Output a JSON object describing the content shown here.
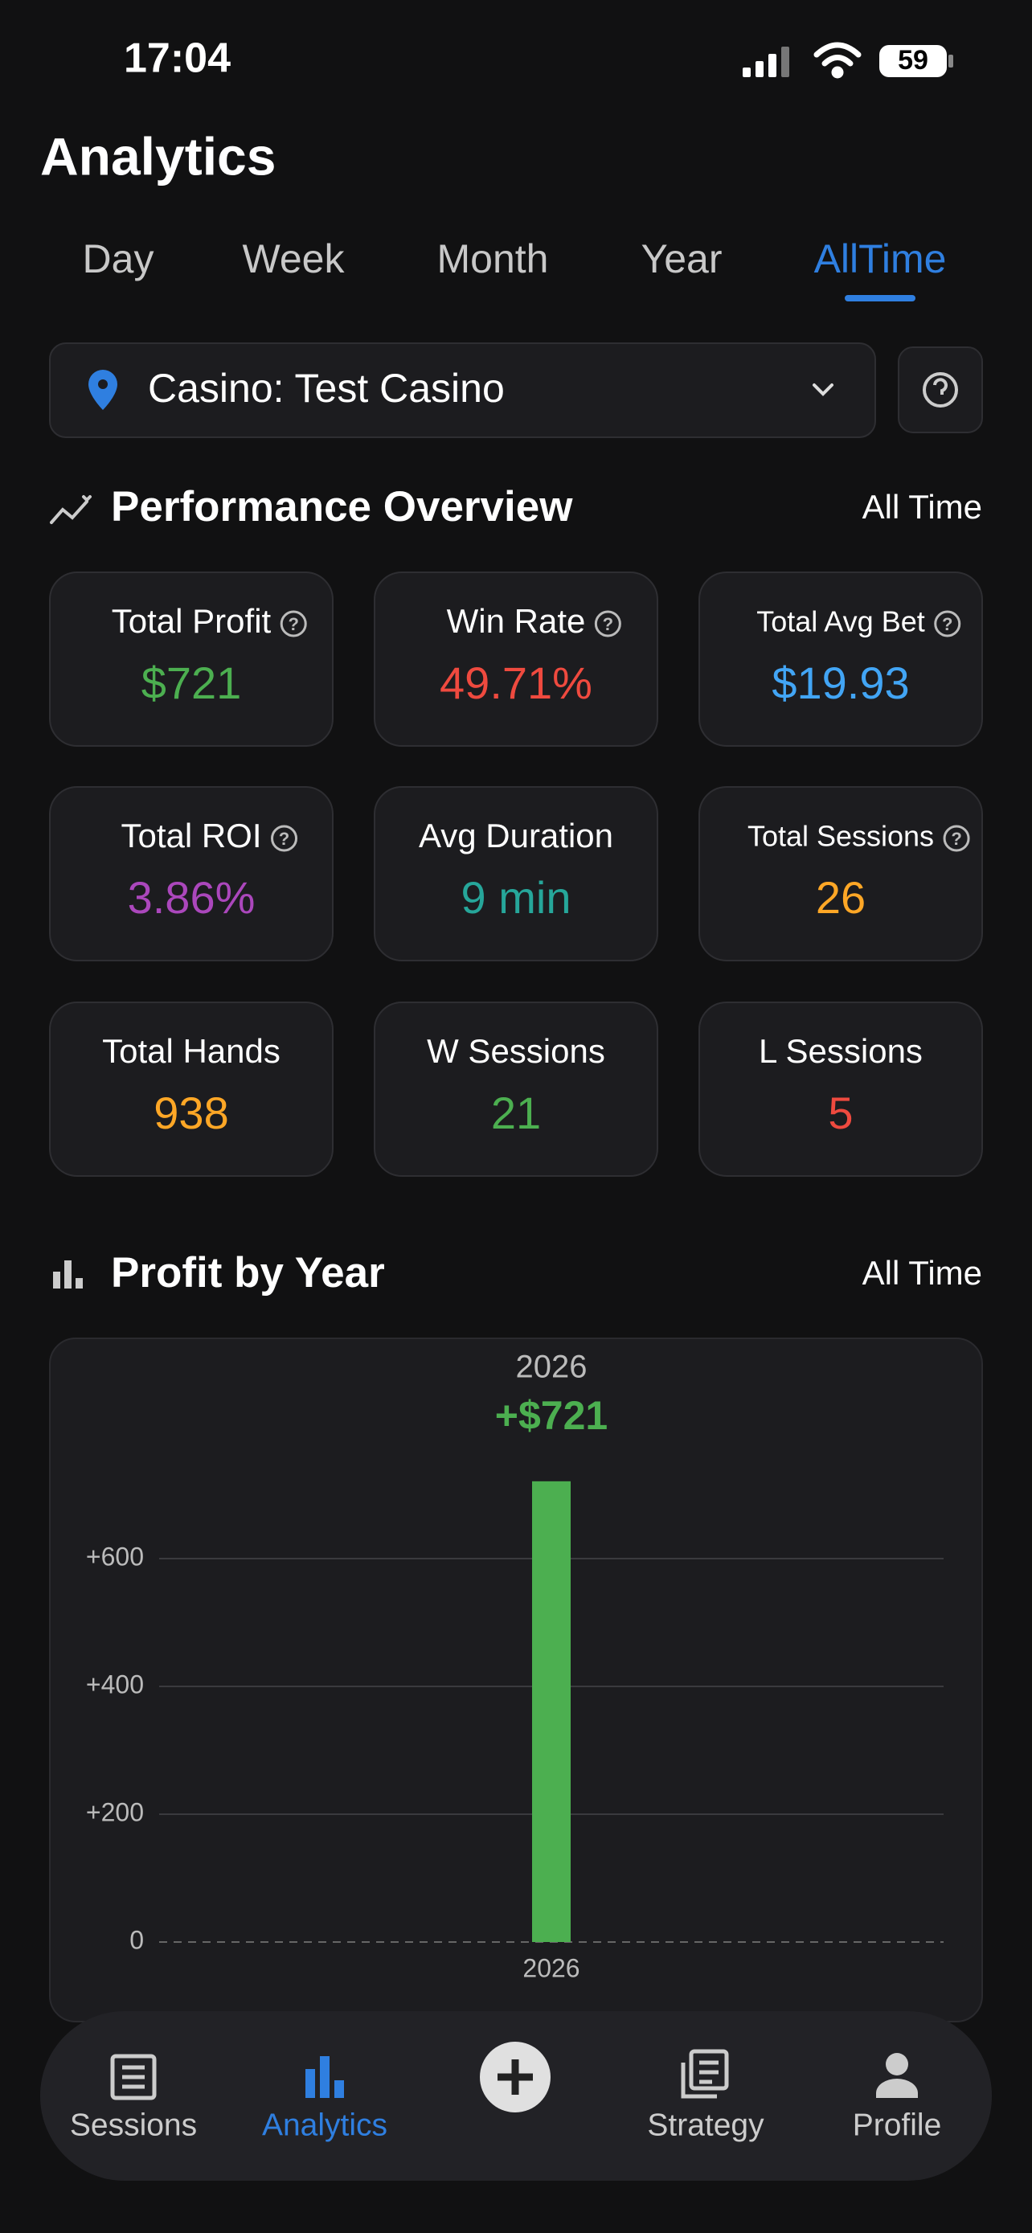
{
  "status": {
    "time": "17:04",
    "battery": "59"
  },
  "header": {
    "title": "Analytics"
  },
  "tabs": {
    "items": [
      "Day",
      "Week",
      "Month",
      "Year",
      "AllTime"
    ],
    "active": 4
  },
  "filter": {
    "label": "Casino: Test Casino"
  },
  "overview": {
    "title": "Performance Overview",
    "period": "All Time",
    "cards": [
      {
        "label": "Total Profit",
        "value": "$721",
        "color": "#4caf50",
        "help": true
      },
      {
        "label": "Win Rate",
        "value": "49.71%",
        "color": "#ef4a3f",
        "help": true
      },
      {
        "label": "Total Avg Bet",
        "value": "$19.93",
        "color": "#42a5f5",
        "help": true
      },
      {
        "label": "Total ROI",
        "value": "3.86%",
        "color": "#ab47bc",
        "help": true
      },
      {
        "label": "Avg Duration",
        "value": "9 min",
        "color": "#26a69a",
        "help": false
      },
      {
        "label": "Total Sessions",
        "value": "26",
        "color": "#ffa726",
        "help": true
      },
      {
        "label": "Total Hands",
        "value": "938",
        "color": "#ffa726",
        "help": false
      },
      {
        "label": "W Sessions",
        "value": "21",
        "color": "#4caf50",
        "help": false
      },
      {
        "label": "L Sessions",
        "value": "5",
        "color": "#ef4a3f",
        "help": false
      }
    ]
  },
  "chart_data": {
    "type": "bar",
    "title": "Profit by Year",
    "period": "All Time",
    "categories": [
      "2026"
    ],
    "values": [
      721
    ],
    "value_labels": [
      "+$721"
    ],
    "color": "#4caf50",
    "ylim": [
      0,
      800
    ],
    "yticks": [
      0,
      {
        "value": 200,
        "label": "+200"
      },
      {
        "value": 400,
        "label": "+400"
      },
      {
        "value": 600,
        "label": "+600"
      }
    ],
    "grid": true
  },
  "nav": {
    "items": [
      "Sessions",
      "Analytics",
      "Strategy",
      "Profile"
    ],
    "active": 1
  }
}
